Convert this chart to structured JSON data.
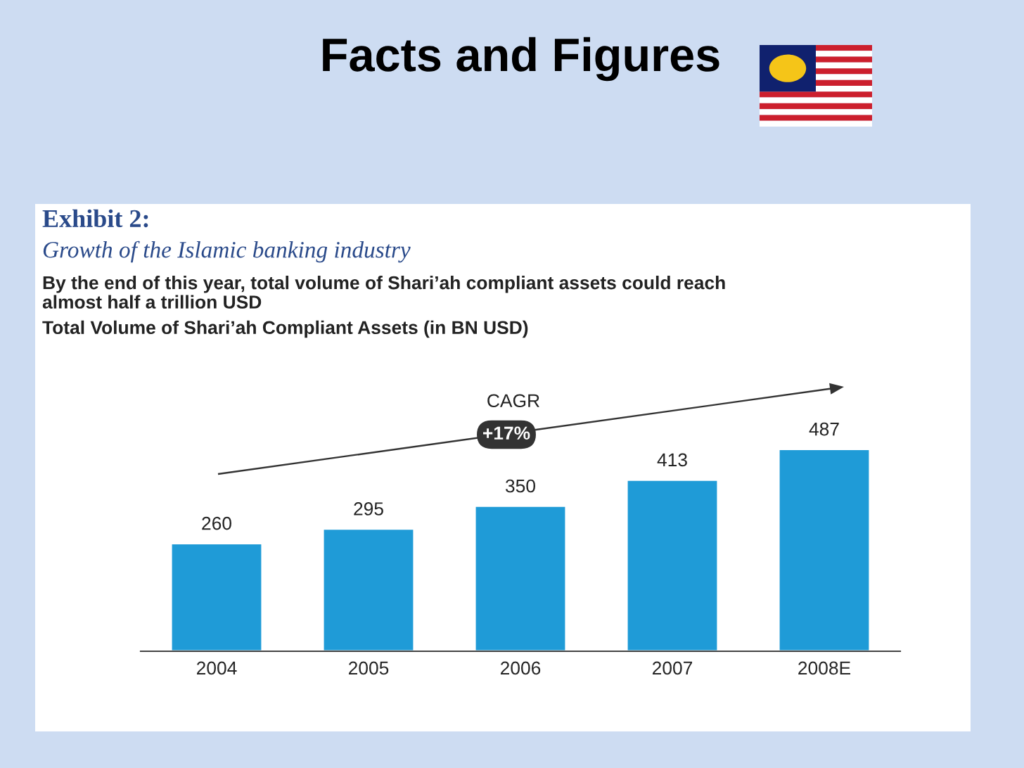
{
  "chart_data": {
    "type": "bar",
    "title": "Facts and Figures",
    "subtitle": "Exhibit 2:",
    "annotations": [
      "Growth of the Islamic banking industry",
      "By the end of this year, total volume of Shari’ah compliant assets could reach\nalmost half a trillion USD",
      "Total Volume of Shari’ah Compliant Assets (in BN USD)",
      "CAGR",
      "+17%"
    ],
    "categories": [
      "2004",
      "2005",
      "2006",
      "2007",
      "2008E"
    ],
    "values": [
      260,
      295,
      350,
      413,
      487
    ],
    "color": "#1f9bd7",
    "data_labels": true,
    "grid": false,
    "legend": false
  }
}
